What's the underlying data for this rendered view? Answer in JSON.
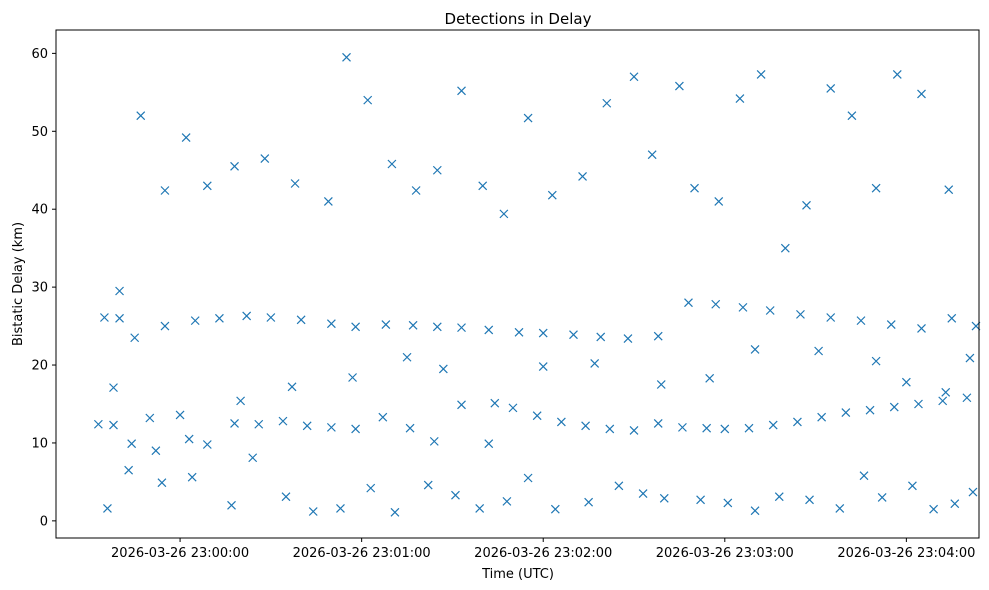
{
  "chart_data": {
    "type": "scatter",
    "title": "Detections in Delay",
    "xlabel": "Time (UTC)",
    "ylabel": "Bistatic Delay (km)",
    "marker": "x",
    "color": "#1f77b4",
    "grid": false,
    "x_range": [
      "2026-03-26 22:59:19",
      "2026-03-26 23:04:24"
    ],
    "ylim": [
      -2.2,
      63
    ],
    "xticks": [
      "2026-03-26 23:00:00",
      "2026-03-26 23:01:00",
      "2026-03-26 23:02:00",
      "2026-03-26 23:03:00",
      "2026-03-26 23:04:00"
    ],
    "yticks": [
      0,
      10,
      20,
      30,
      40,
      50,
      60
    ],
    "series": [
      {
        "x": [
          "22:59:33",
          "22:59:38",
          "22:59:44",
          "22:59:50",
          "23:00:00",
          "23:00:09",
          "23:00:18",
          "23:00:26",
          "23:00:34",
          "23:00:42",
          "23:00:50",
          "23:00:58",
          "23:01:07",
          "23:01:16",
          "23:01:24",
          "23:01:33",
          "23:01:42",
          "23:01:50",
          "23:01:58",
          "23:02:06",
          "23:02:14",
          "23:02:22",
          "23:02:30",
          "23:02:38",
          "23:02:46",
          "23:02:54",
          "23:03:00",
          "23:03:08",
          "23:03:16",
          "23:03:24",
          "23:03:32",
          "23:03:40",
          "23:03:48",
          "23:03:56",
          "23:04:04",
          "23:04:12",
          "23:04:20",
          "22:59:35",
          "22:59:40",
          "22:59:45",
          "22:59:55",
          "23:00:05",
          "23:00:13",
          "23:00:22",
          "23:00:30",
          "23:00:40",
          "23:00:50",
          "23:00:58",
          "23:01:08",
          "23:01:17",
          "23:01:25",
          "23:01:33",
          "23:01:42",
          "23:01:52",
          "23:02:00",
          "23:02:10",
          "23:02:19",
          "23:02:28",
          "23:02:38",
          "23:02:48",
          "23:02:57",
          "23:03:06",
          "23:03:15",
          "23:03:25",
          "23:03:35",
          "23:03:45",
          "23:03:55",
          "23:04:05",
          "23:04:15",
          "23:04:23",
          "22:59:40",
          "22:59:47",
          "22:59:55",
          "23:00:02",
          "23:00:09",
          "23:00:18",
          "23:00:28",
          "23:00:38",
          "23:00:49",
          "23:00:55",
          "23:01:02",
          "23:01:10",
          "23:01:18",
          "23:01:25",
          "23:01:33",
          "23:01:40",
          "23:01:47",
          "23:01:55",
          "23:02:03",
          "23:02:13",
          "23:02:21",
          "23:02:30",
          "23:02:36",
          "23:02:45",
          "23:02:50",
          "23:02:58",
          "23:03:05",
          "23:03:12",
          "23:03:20",
          "23:03:27",
          "23:03:35",
          "23:03:42",
          "23:03:50",
          "23:03:57",
          "23:04:05",
          "23:04:14",
          "22:59:36",
          "22:59:43",
          "22:59:54",
          "23:00:04",
          "23:00:17",
          "23:00:24",
          "23:00:35",
          "23:00:44",
          "23:00:53",
          "23:01:03",
          "23:01:11",
          "23:01:22",
          "23:01:31",
          "23:01:39",
          "23:01:48",
          "23:01:55",
          "23:02:04",
          "23:02:15",
          "23:02:25",
          "23:02:33",
          "23:02:40",
          "23:02:52",
          "23:03:01",
          "23:03:10",
          "23:03:18",
          "23:03:28",
          "23:03:38",
          "23:03:46",
          "23:03:52",
          "23:04:02",
          "23:04:09",
          "23:04:16",
          "23:04:22",
          "22:59:38",
          "22:59:52",
          "23:00:03",
          "23:00:20",
          "23:00:37",
          "23:00:57",
          "23:01:15",
          "23:01:27",
          "23:01:44",
          "23:02:00",
          "23:02:17",
          "23:02:39",
          "23:02:55",
          "23:03:10",
          "23:03:31",
          "23:03:50",
          "23:04:00",
          "23:04:13",
          "23:04:21"
        ],
        "y": [
          12.4,
          12.3,
          9.9,
          13.2,
          13.6,
          9.8,
          12.5,
          12.4,
          12.8,
          12.2,
          12.0,
          11.8,
          13.3,
          11.9,
          10.2,
          14.9,
          9.9,
          14.5,
          13.5,
          12.7,
          12.2,
          11.8,
          11.6,
          12.5,
          12.0,
          11.9,
          11.8,
          11.9,
          12.3,
          12.7,
          13.3,
          13.9,
          14.2,
          14.6,
          15.0,
          15.4,
          15.8,
          26.1,
          26.0,
          23.5,
          25.0,
          25.7,
          26.0,
          26.3,
          26.1,
          25.8,
          25.3,
          24.9,
          25.2,
          25.1,
          24.9,
          24.8,
          24.5,
          24.2,
          24.1,
          23.9,
          23.6,
          23.4,
          23.7,
          28.0,
          27.8,
          27.4,
          27.0,
          26.5,
          26.1,
          25.7,
          25.2,
          24.7,
          26.0,
          25.0,
          29.5,
          52.0,
          42.4,
          49.2,
          43.0,
          45.5,
          46.5,
          43.3,
          41.0,
          59.5,
          54.0,
          45.8,
          42.4,
          45.0,
          55.2,
          43.0,
          39.4,
          51.7,
          41.8,
          44.2,
          53.6,
          57.0,
          47.0,
          55.8,
          42.7,
          41.0,
          54.2,
          57.3,
          35.0,
          40.5,
          55.5,
          52.0,
          42.7,
          57.3,
          54.8,
          42.5,
          1.6,
          6.5,
          4.9,
          5.6,
          2.0,
          8.1,
          3.1,
          1.2,
          1.6,
          4.2,
          1.1,
          4.6,
          3.3,
          1.6,
          2.5,
          5.5,
          1.5,
          2.4,
          4.5,
          3.5,
          2.9,
          2.7,
          2.3,
          1.3,
          3.1,
          2.7,
          1.6,
          5.8,
          3.0,
          4.5,
          1.5,
          2.2,
          3.7,
          17.1,
          9.0,
          10.5,
          15.4,
          17.2,
          18.4,
          21.0,
          19.5,
          15.1,
          19.8,
          20.2,
          17.5,
          18.3,
          22.0,
          21.8,
          20.5,
          17.8,
          16.5,
          20.9
        ]
      }
    ]
  }
}
